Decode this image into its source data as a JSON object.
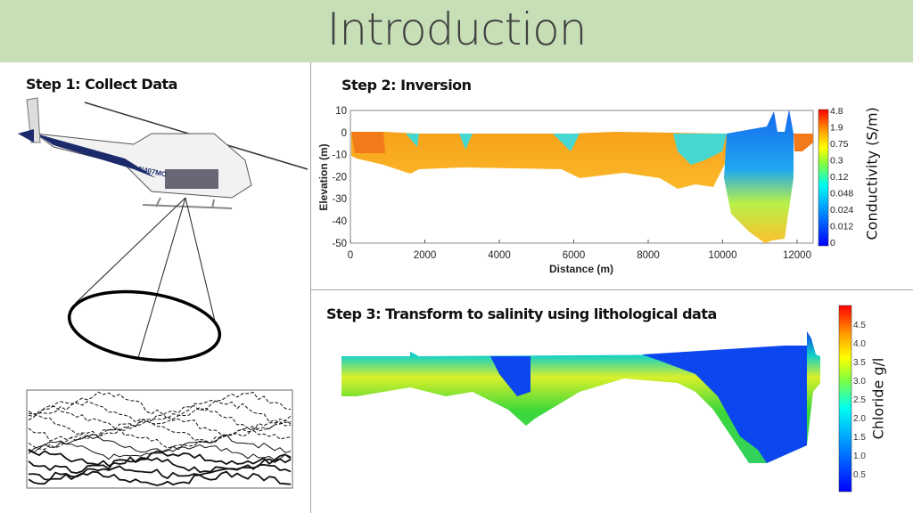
{
  "slide": {
    "title": "Introduction"
  },
  "steps": {
    "step1": "Step 1: Collect Data",
    "step2": "Step 2: Inversion",
    "step3": "Step 3: Transform to salinity using lithological data"
  },
  "helicopter": {
    "registration": "N407MC",
    "icon": "helicopter-icon"
  },
  "chart_data": [
    {
      "type": "heatmap",
      "xlabel": "Distance (m)",
      "ylabel": "Elevation (m)",
      "xlim": [
        0,
        12400
      ],
      "ylim": [
        -51,
        10
      ],
      "xticks": [
        "0",
        "2000",
        "4000",
        "6000",
        "8000",
        "10000",
        "12000"
      ],
      "yticks": [
        "10",
        "0",
        "-10",
        "-20",
        "-30",
        "-40",
        "-50"
      ],
      "colorbar": {
        "label": "Conductivity (S/m)",
        "ticks": [
          "4.8",
          "1.9",
          "0.75",
          "0.3",
          "0.12",
          "0.048",
          "0.024",
          "0.012",
          "0"
        ]
      }
    },
    {
      "type": "heatmap",
      "colorbar": {
        "label": "Chloride g/l",
        "ticks": [
          "4.5",
          "4.0",
          "3.5",
          "3.0",
          "2.5",
          "2.0",
          "1.5",
          "1.0",
          "0.5"
        ]
      }
    }
  ],
  "colors": {
    "header": "#c7dfb7",
    "divider": "#a6a6a6"
  }
}
